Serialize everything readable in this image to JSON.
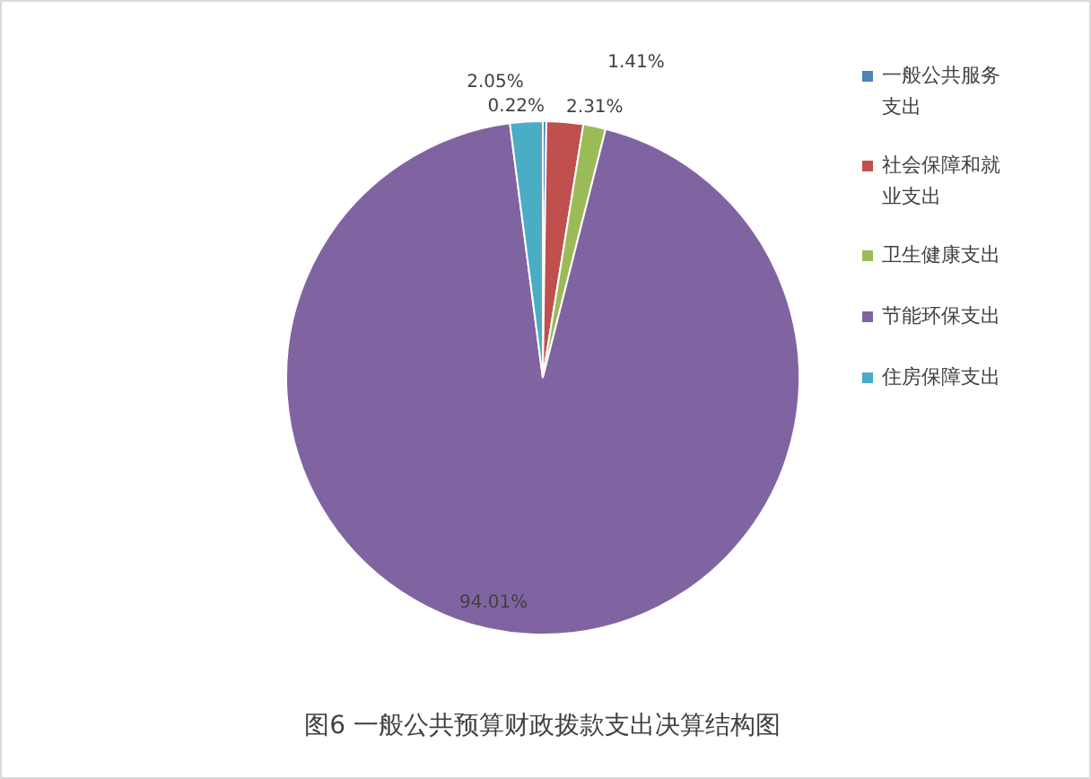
{
  "chart_data": {
    "type": "pie",
    "title": "图6  一般公共预算财政拨款支出决算结构图",
    "categories": [
      "一般公共服务支出",
      "社会保障和就业支出",
      "卫生健康支出",
      "节能环保支出",
      "住房保障支出"
    ],
    "values": [
      0.22,
      2.31,
      1.41,
      94.01,
      2.05
    ],
    "value_labels": [
      "0.22%",
      "2.31%",
      "1.41%",
      "94.01%",
      "2.05%"
    ],
    "colors": [
      "#4f81bd",
      "#c0504d",
      "#9bbb59",
      "#8064a2",
      "#4bacc6"
    ],
    "legend": "right"
  }
}
